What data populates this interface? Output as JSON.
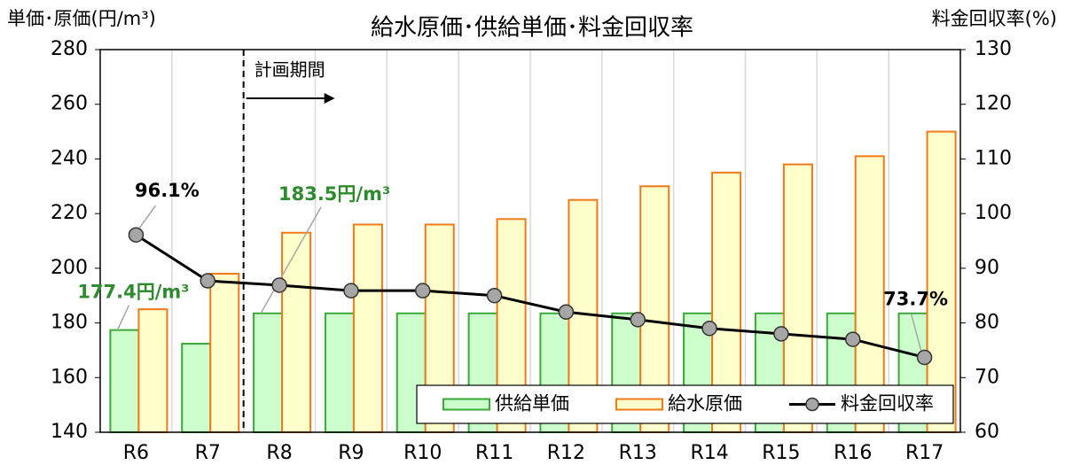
{
  "chart_data": {
    "type": "bar_line",
    "title": "給水原価･供給単価･料金回収率",
    "y_label": "単価･原価(円/m³)",
    "y2_label": "料金回収率(%)",
    "annotation": "計画期間",
    "categories": [
      "R6",
      "R7",
      "R8",
      "R9",
      "R10",
      "R11",
      "R12",
      "R13",
      "R14",
      "R15",
      "R16",
      "R17"
    ],
    "series": [
      {
        "name": "供給単価",
        "type": "bar",
        "color": "#ccffcc",
        "edge_color": "#3aa83a",
        "values": [
          177.4,
          172.4,
          183.5,
          183.5,
          183.5,
          183.5,
          183.5,
          183.5,
          183.5,
          183.5,
          183.5,
          183.5
        ],
        "value_labels": [
          "177.4円/m³",
          null,
          "183.5円/m³",
          null,
          null,
          null,
          null,
          null,
          null,
          null,
          null,
          null
        ]
      },
      {
        "name": "給水原価",
        "type": "bar",
        "color": "#ffffcc",
        "edge_color": "#f07a1a",
        "values": [
          185,
          198,
          213,
          216,
          216,
          218,
          225,
          230,
          235,
          238,
          241,
          250
        ]
      },
      {
        "name": "料金回収率",
        "type": "line",
        "axis": "y2",
        "color": "#000000",
        "marker_color": "#a6a6a6",
        "values": [
          96.1,
          87.7,
          86.9,
          85.9,
          85.9,
          85,
          82,
          80.6,
          79,
          78,
          77,
          73.7
        ],
        "value_labels": [
          "96.1%",
          null,
          null,
          null,
          null,
          null,
          null,
          null,
          null,
          null,
          null,
          "73.7%"
        ]
      }
    ],
    "ylim": [
      140,
      280
    ],
    "yticks": [
      140,
      160,
      180,
      200,
      220,
      240,
      260,
      280
    ],
    "y2lim": [
      60,
      130
    ],
    "y2ticks": [
      60,
      70,
      80,
      90,
      100,
      110,
      120,
      130
    ],
    "legend": "lower right"
  }
}
